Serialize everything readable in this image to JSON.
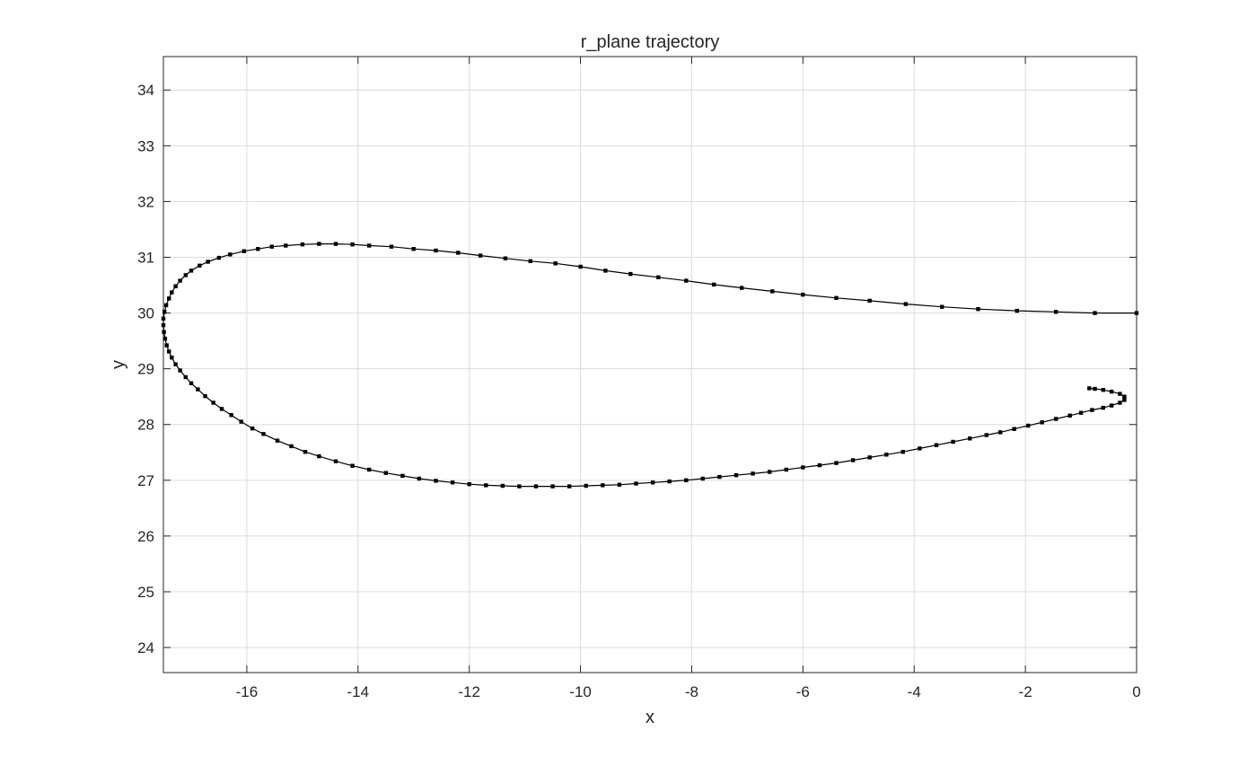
{
  "chart_data": {
    "type": "line",
    "title": "r_plane trajectory",
    "xlabel": "x",
    "ylabel": "y",
    "xlim": [
      -17.5,
      0
    ],
    "ylim": [
      23.55,
      34.6
    ],
    "xticks": [
      -16,
      -14,
      -12,
      -10,
      -8,
      -6,
      -4,
      -2,
      0
    ],
    "yticks": [
      24,
      25,
      26,
      27,
      28,
      29,
      30,
      31,
      32,
      33,
      34
    ],
    "grid": true,
    "series": [
      {
        "marker": "square",
        "color": "#000000",
        "points": [
          [
            0.0,
            30.0
          ],
          [
            -0.75,
            30.0
          ],
          [
            -1.45,
            30.02
          ],
          [
            -2.15,
            30.04
          ],
          [
            -2.85,
            30.07
          ],
          [
            -3.5,
            30.11
          ],
          [
            -4.15,
            30.16
          ],
          [
            -4.8,
            30.22
          ],
          [
            -5.4,
            30.27
          ],
          [
            -6.0,
            30.33
          ],
          [
            -6.55,
            30.39
          ],
          [
            -7.1,
            30.45
          ],
          [
            -7.6,
            30.51
          ],
          [
            -8.1,
            30.58
          ],
          [
            -8.6,
            30.64
          ],
          [
            -9.1,
            30.7
          ],
          [
            -9.55,
            30.76
          ],
          [
            -10.0,
            30.83
          ],
          [
            -10.45,
            30.89
          ],
          [
            -10.9,
            30.93
          ],
          [
            -11.35,
            30.98
          ],
          [
            -11.8,
            31.03
          ],
          [
            -12.2,
            31.08
          ],
          [
            -12.6,
            31.12
          ],
          [
            -13.0,
            31.15
          ],
          [
            -13.4,
            31.19
          ],
          [
            -13.8,
            31.21
          ],
          [
            -14.1,
            31.23
          ],
          [
            -14.4,
            31.24
          ],
          [
            -14.7,
            31.24
          ],
          [
            -15.0,
            31.23
          ],
          [
            -15.3,
            31.21
          ],
          [
            -15.55,
            31.19
          ],
          [
            -15.8,
            31.15
          ],
          [
            -16.05,
            31.11
          ],
          [
            -16.3,
            31.05
          ],
          [
            -16.5,
            30.99
          ],
          [
            -16.7,
            30.92
          ],
          [
            -16.85,
            30.85
          ],
          [
            -17.0,
            30.76
          ],
          [
            -17.1,
            30.68
          ],
          [
            -17.2,
            30.58
          ],
          [
            -17.28,
            30.48
          ],
          [
            -17.35,
            30.37
          ],
          [
            -17.4,
            30.26
          ],
          [
            -17.45,
            30.14
          ],
          [
            -17.48,
            30.02
          ],
          [
            -17.5,
            29.9
          ],
          [
            -17.5,
            29.78
          ],
          [
            -17.49,
            29.66
          ],
          [
            -17.47,
            29.54
          ],
          [
            -17.44,
            29.42
          ],
          [
            -17.4,
            29.31
          ],
          [
            -17.35,
            29.2
          ],
          [
            -17.28,
            29.08
          ],
          [
            -17.2,
            28.97
          ],
          [
            -17.1,
            28.85
          ],
          [
            -17.0,
            28.74
          ],
          [
            -16.88,
            28.63
          ],
          [
            -16.75,
            28.51
          ],
          [
            -16.6,
            28.39
          ],
          [
            -16.45,
            28.28
          ],
          [
            -16.28,
            28.17
          ],
          [
            -16.1,
            28.05
          ],
          [
            -15.9,
            27.93
          ],
          [
            -15.7,
            27.83
          ],
          [
            -15.45,
            27.71
          ],
          [
            -15.2,
            27.61
          ],
          [
            -14.95,
            27.51
          ],
          [
            -14.7,
            27.43
          ],
          [
            -14.4,
            27.34
          ],
          [
            -14.1,
            27.26
          ],
          [
            -13.8,
            27.19
          ],
          [
            -13.5,
            27.13
          ],
          [
            -13.2,
            27.08
          ],
          [
            -12.9,
            27.03
          ],
          [
            -12.6,
            26.99
          ],
          [
            -12.3,
            26.96
          ],
          [
            -12.0,
            26.93
          ],
          [
            -11.7,
            26.91
          ],
          [
            -11.4,
            26.9
          ],
          [
            -11.1,
            26.89
          ],
          [
            -10.8,
            26.89
          ],
          [
            -10.5,
            26.89
          ],
          [
            -10.2,
            26.89
          ],
          [
            -9.9,
            26.9
          ],
          [
            -9.6,
            26.91
          ],
          [
            -9.3,
            26.92
          ],
          [
            -9.0,
            26.94
          ],
          [
            -8.7,
            26.96
          ],
          [
            -8.4,
            26.98
          ],
          [
            -8.1,
            27.0
          ],
          [
            -7.8,
            27.03
          ],
          [
            -7.5,
            27.06
          ],
          [
            -7.2,
            27.09
          ],
          [
            -6.9,
            27.12
          ],
          [
            -6.6,
            27.15
          ],
          [
            -6.3,
            27.19
          ],
          [
            -6.0,
            27.23
          ],
          [
            -5.7,
            27.27
          ],
          [
            -5.4,
            27.31
          ],
          [
            -5.1,
            27.36
          ],
          [
            -4.8,
            27.41
          ],
          [
            -4.5,
            27.46
          ],
          [
            -4.2,
            27.51
          ],
          [
            -3.9,
            27.57
          ],
          [
            -3.6,
            27.63
          ],
          [
            -3.3,
            27.69
          ],
          [
            -3.0,
            27.75
          ],
          [
            -2.7,
            27.81
          ],
          [
            -2.45,
            27.86
          ],
          [
            -2.2,
            27.92
          ],
          [
            -1.95,
            27.98
          ],
          [
            -1.7,
            28.04
          ],
          [
            -1.45,
            28.1
          ],
          [
            -1.2,
            28.16
          ],
          [
            -1.0,
            28.21
          ],
          [
            -0.8,
            28.26
          ],
          [
            -0.6,
            28.3
          ],
          [
            -0.45,
            28.34
          ],
          [
            -0.3,
            28.39
          ],
          [
            -0.22,
            28.44
          ],
          [
            -0.22,
            28.5
          ],
          [
            -0.3,
            28.55
          ],
          [
            -0.45,
            28.59
          ],
          [
            -0.6,
            28.62
          ],
          [
            -0.75,
            28.64
          ],
          [
            -0.85,
            28.65
          ]
        ]
      }
    ]
  }
}
